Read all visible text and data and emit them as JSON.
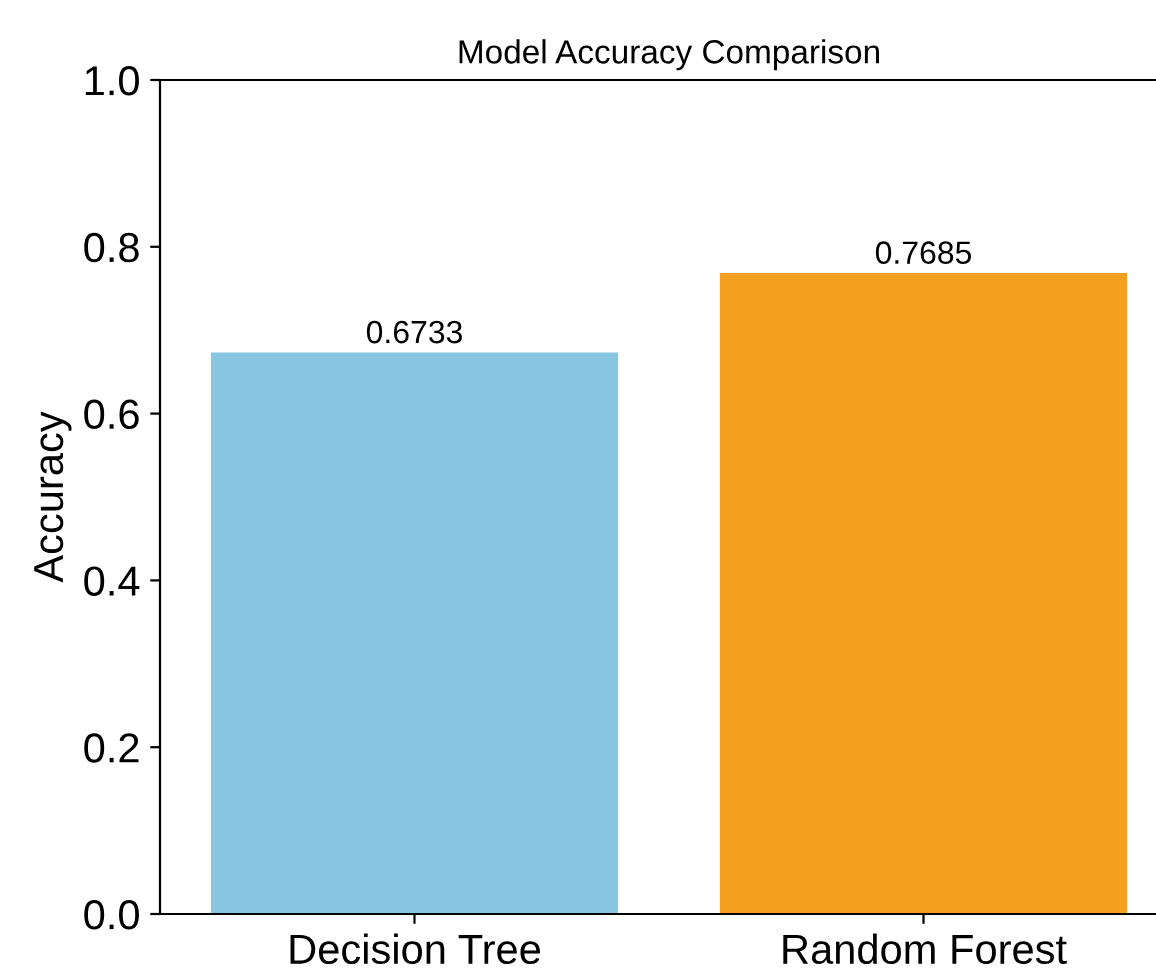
{
  "chart_data": {
    "type": "bar",
    "title": "Model Accuracy Comparison",
    "ylabel": "Accuracy",
    "categories": [
      "Decision Tree",
      "Random Forest"
    ],
    "values": [
      0.6733,
      0.7685
    ],
    "colors": [
      "#87c5e0",
      "#f3a01f"
    ],
    "ylim": [
      0,
      1.0
    ],
    "yticks": [
      {
        "value": 0,
        "label": "0.0"
      },
      0.2,
      0.4,
      0.6,
      0.8,
      {
        "value": 1,
        "label": "1.0"
      }
    ],
    "data_labels": true,
    "grid": false,
    "legend": false
  }
}
